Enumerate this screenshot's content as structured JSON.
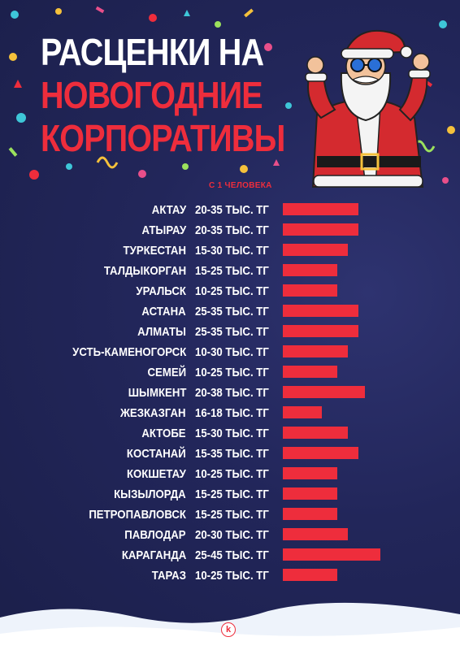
{
  "header": {
    "line1": "РАСЦЕНКИ НА",
    "line2": "НОВОГОДНИЕ",
    "line3": "КОРПОРАТИВЫ"
  },
  "subtitle": "С 1 ЧЕЛОВЕКА",
  "logo_letter": "k",
  "colors": {
    "background": "#1f2350",
    "accent": "#ee2d3c",
    "text": "#ffffff"
  },
  "chart_data": {
    "type": "bar",
    "orientation": "horizontal",
    "unit": "тыс. тг",
    "rows": [
      {
        "city": "АКТАУ",
        "label": "20-35 ТЫС. ТГ",
        "min": 20,
        "max": 35
      },
      {
        "city": "АТЫРАУ",
        "label": "20-35 ТЫС. ТГ",
        "min": 20,
        "max": 35
      },
      {
        "city": "ТУРКЕСТАН",
        "label": "15-30 ТЫС. ТГ",
        "min": 15,
        "max": 30
      },
      {
        "city": "ТАЛДЫКОРГАН",
        "label": "15-25 ТЫС. ТГ",
        "min": 15,
        "max": 25
      },
      {
        "city": "УРАЛЬСК",
        "label": "10-25 ТЫС. ТГ",
        "min": 10,
        "max": 25
      },
      {
        "city": "АСТАНА",
        "label": "25-35 ТЫС. ТГ",
        "min": 25,
        "max": 35
      },
      {
        "city": "АЛМАТЫ",
        "label": "25-35 ТЫС. ТГ",
        "min": 25,
        "max": 35
      },
      {
        "city": "УСТЬ-КАМЕНОГОРСК",
        "label": "10-30 ТЫС. ТГ",
        "min": 10,
        "max": 30
      },
      {
        "city": "СЕМЕЙ",
        "label": "10-25 ТЫС. ТГ",
        "min": 10,
        "max": 25
      },
      {
        "city": "ШЫМКЕНТ",
        "label": "20-38 ТЫС. ТГ",
        "min": 20,
        "max": 38
      },
      {
        "city": "ЖЕЗКАЗГАН",
        "label": "16-18 ТЫС. ТГ",
        "min": 16,
        "max": 18
      },
      {
        "city": "АКТОБЕ",
        "label": "15-30 ТЫС. ТГ",
        "min": 15,
        "max": 30
      },
      {
        "city": "КОСТАНАЙ",
        "label": "15-35 ТЫС. ТГ",
        "min": 15,
        "max": 35
      },
      {
        "city": "КОКШЕТАУ",
        "label": "10-25 ТЫС. ТГ",
        "min": 10,
        "max": 25
      },
      {
        "city": "КЫЗЫЛОРДА",
        "label": "15-25 ТЫС. ТГ",
        "min": 15,
        "max": 25
      },
      {
        "city": "ПЕТРОПАВЛОВСК",
        "label": "15-25 ТЫС. ТГ",
        "min": 15,
        "max": 25
      },
      {
        "city": "ПАВЛОДАР",
        "label": "20-30 ТЫС. ТГ",
        "min": 20,
        "max": 30
      },
      {
        "city": "КАРАГАНДА",
        "label": "25-45 ТЫС. ТГ",
        "min": 25,
        "max": 45
      },
      {
        "city": "ТАРАЗ",
        "label": "10-25 ТЫС. ТГ",
        "min": 10,
        "max": 25
      }
    ]
  }
}
